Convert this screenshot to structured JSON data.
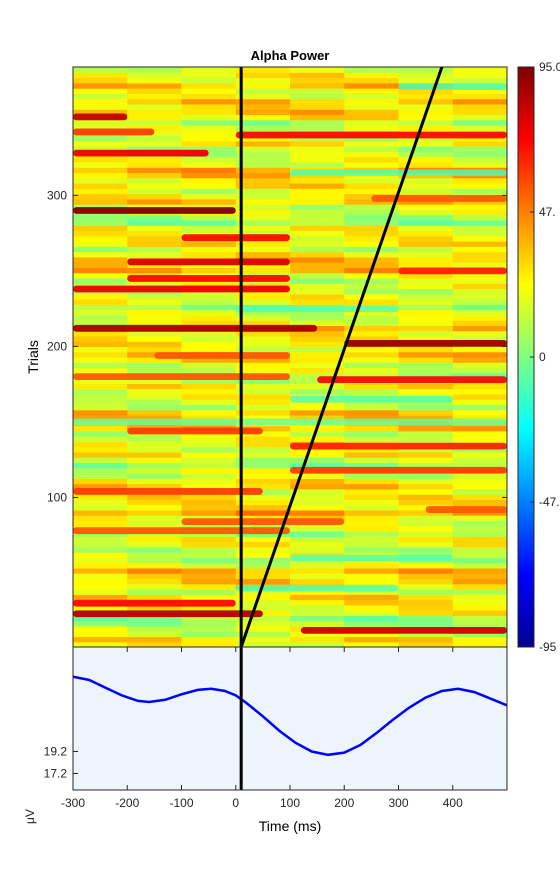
{
  "chart_data": [
    {
      "type": "heatmap",
      "title": "Alpha Power",
      "ylabel": "Trials",
      "xlim": [
        -300,
        500
      ],
      "ylim": [
        1,
        385
      ],
      "y_ticks": [
        "100",
        "200",
        "300"
      ],
      "y_tick_values": [
        100,
        200,
        300
      ],
      "colorbar": {
        "ticks": [
          "95.0",
          "47.",
          "0",
          "-47.",
          "-95"
        ],
        "tick_values": [
          95,
          47.5,
          0,
          -47.5,
          -95
        ],
        "range": [
          -95,
          95
        ],
        "colormap": "jet"
      },
      "baseline_line": {
        "x": 10
      },
      "sort_line": {
        "x": [
          10,
          380
        ],
        "y": [
          1,
          385
        ]
      },
      "hot_bands": [
        {
          "trial": 12,
          "x_from": 120,
          "x_to": 500,
          "value": 80
        },
        {
          "trial": 23,
          "x_from": -300,
          "x_to": 50,
          "value": 85
        },
        {
          "trial": 30,
          "x_from": -300,
          "x_to": 0,
          "value": 70
        },
        {
          "trial": 78,
          "x_from": -300,
          "x_to": 100,
          "value": 55
        },
        {
          "trial": 84,
          "x_from": -100,
          "x_to": 200,
          "value": 55
        },
        {
          "trial": 92,
          "x_from": 350,
          "x_to": 500,
          "value": 55
        },
        {
          "trial": 104,
          "x_from": -300,
          "x_to": 50,
          "value": 60
        },
        {
          "trial": 118,
          "x_from": 100,
          "x_to": 500,
          "value": 60
        },
        {
          "trial": 134,
          "x_from": 100,
          "x_to": 500,
          "value": 65
        },
        {
          "trial": 144,
          "x_from": -200,
          "x_to": 50,
          "value": 60
        },
        {
          "trial": 178,
          "x_from": 150,
          "x_to": 500,
          "value": 70
        },
        {
          "trial": 180,
          "x_from": -300,
          "x_to": 100,
          "value": 55
        },
        {
          "trial": 194,
          "x_from": -150,
          "x_to": 100,
          "value": 55
        },
        {
          "trial": 202,
          "x_from": 200,
          "x_to": 500,
          "value": 90
        },
        {
          "trial": 212,
          "x_from": -300,
          "x_to": 150,
          "value": 88
        },
        {
          "trial": 238,
          "x_from": -300,
          "x_to": 100,
          "value": 75
        },
        {
          "trial": 245,
          "x_from": -200,
          "x_to": 100,
          "value": 70
        },
        {
          "trial": 250,
          "x_from": 300,
          "x_to": 500,
          "value": 65
        },
        {
          "trial": 256,
          "x_from": -200,
          "x_to": 100,
          "value": 78
        },
        {
          "trial": 272,
          "x_from": -100,
          "x_to": 100,
          "value": 70
        },
        {
          "trial": 290,
          "x_from": -300,
          "x_to": 0,
          "value": 95
        },
        {
          "trial": 298,
          "x_from": 250,
          "x_to": 500,
          "value": 55
        },
        {
          "trial": 328,
          "x_from": -300,
          "x_to": -50,
          "value": 75
        },
        {
          "trial": 340,
          "x_from": 0,
          "x_to": 500,
          "value": 70
        },
        {
          "trial": 342,
          "x_from": -300,
          "x_to": -150,
          "value": 60
        },
        {
          "trial": 352,
          "x_from": -300,
          "x_to": -200,
          "value": 82
        }
      ],
      "cool_bands": [
        {
          "trial": 40,
          "x_from": 0,
          "x_to": 300,
          "value": -10
        },
        {
          "trial": 60,
          "x_from": 100,
          "x_to": 400,
          "value": -10
        },
        {
          "trial": 150,
          "x_from": -300,
          "x_to": 500,
          "value": -5
        },
        {
          "trial": 165,
          "x_from": 100,
          "x_to": 400,
          "value": -10
        },
        {
          "trial": 225,
          "x_from": 0,
          "x_to": 300,
          "value": -8
        },
        {
          "trial": 315,
          "x_from": 100,
          "x_to": 500,
          "value": -10
        },
        {
          "trial": 372,
          "x_from": 300,
          "x_to": 500,
          "value": -12
        }
      ]
    },
    {
      "type": "line",
      "xlabel": "Time (ms)",
      "ylabel": "μV",
      "xlim": [
        -300,
        500
      ],
      "ylim": [
        15.7,
        28.7
      ],
      "x_ticks": [
        "-300",
        "-200",
        "-100",
        "0",
        "100",
        "200",
        "300",
        "400"
      ],
      "x_tick_values": [
        -300,
        -200,
        -100,
        0,
        100,
        200,
        300,
        400
      ],
      "y_ticks": [
        "17.2",
        "19.2"
      ],
      "y_tick_values": [
        17.2,
        19.2
      ],
      "baseline_line": {
        "x": 10
      },
      "series": [
        {
          "color": "#0000ff",
          "x": [
            -300,
            -270,
            -240,
            -210,
            -180,
            -160,
            -130,
            -100,
            -70,
            -45,
            -20,
            0,
            20,
            50,
            80,
            110,
            140,
            170,
            200,
            230,
            260,
            290,
            320,
            350,
            380,
            410,
            440,
            470,
            500
          ],
          "y": [
            26.0,
            25.7,
            25.0,
            24.3,
            23.8,
            23.7,
            23.9,
            24.4,
            24.8,
            24.9,
            24.7,
            24.3,
            23.6,
            22.4,
            21.1,
            20.0,
            19.2,
            18.9,
            19.1,
            19.8,
            20.9,
            22.1,
            23.2,
            24.1,
            24.7,
            24.9,
            24.6,
            24.0,
            23.4
          ]
        }
      ]
    }
  ]
}
